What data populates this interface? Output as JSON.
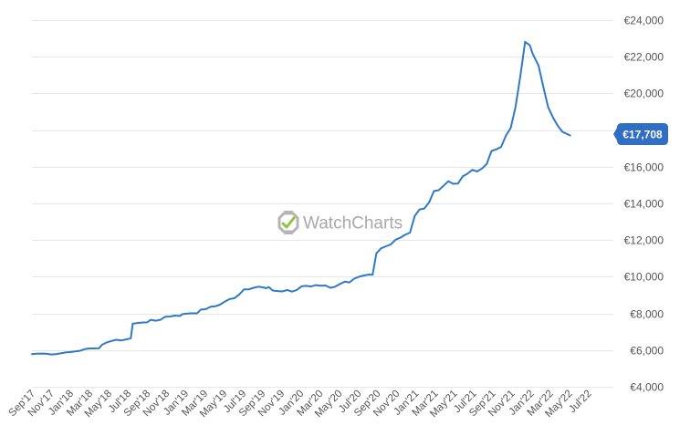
{
  "chart_data": {
    "type": "line",
    "title": "",
    "xlabel": "",
    "ylabel": "",
    "currency_prefix": "€",
    "ylim": [
      4000,
      24000
    ],
    "y_ticks": [
      4000,
      6000,
      8000,
      10000,
      12000,
      14000,
      16000,
      18000,
      20000,
      22000,
      24000
    ],
    "y_tick_labels": [
      "€4,000",
      "€6,000",
      "€8,000",
      "€10,000",
      "€12,000",
      "€14,000",
      "€16,000",
      "€18,000",
      "€20,000",
      "€22,000",
      "€24,000"
    ],
    "x_tick_labels": [
      "Sep'17",
      "Nov'17",
      "Jan'18",
      "Mar'18",
      "May'18",
      "Jul'18",
      "Sep'18",
      "Nov'18",
      "Jan'19",
      "Mar'19",
      "May'19",
      "Jul'19",
      "Sep'19",
      "Nov'19",
      "Jan'20",
      "Mar'20",
      "May'20",
      "Jul'20",
      "Sep'20",
      "Nov'20",
      "Jan'21",
      "Mar'21",
      "May'21",
      "Jul'21",
      "Sep'21",
      "Nov'21",
      "Jan'22",
      "Mar'22",
      "May'22",
      "Jul'22"
    ],
    "x_tick_months": [
      0,
      2,
      4,
      6,
      8,
      10,
      12,
      14,
      16,
      18,
      20,
      22,
      24,
      26,
      28,
      30,
      32,
      34,
      36,
      38,
      40,
      42,
      44,
      46,
      48,
      50,
      52,
      54,
      56,
      58
    ],
    "x_range_months": [
      0,
      60.6
    ],
    "grid": true,
    "legend": "none",
    "watermark": "WatchCharts",
    "current_value_label": "€17,708",
    "colors": {
      "line": "#3079c6",
      "badge": "#2f6ec4",
      "grid": "#e6e6e6",
      "tick": "#555555"
    },
    "series": [
      {
        "values": [
          [
            0,
            5780
          ],
          [
            0.5,
            5800
          ],
          [
            1.0,
            5810
          ],
          [
            1.5,
            5800
          ],
          [
            2.0,
            5760
          ],
          [
            2.5,
            5780
          ],
          [
            3.0,
            5820
          ],
          [
            3.5,
            5870
          ],
          [
            4.0,
            5890
          ],
          [
            4.5,
            5930
          ],
          [
            5.0,
            5960
          ],
          [
            5.5,
            6050
          ],
          [
            6.0,
            6090
          ],
          [
            6.5,
            6090
          ],
          [
            7.0,
            6100
          ],
          [
            7.3,
            6290
          ],
          [
            7.8,
            6420
          ],
          [
            8.3,
            6500
          ],
          [
            8.8,
            6560
          ],
          [
            9.3,
            6520
          ],
          [
            9.8,
            6580
          ],
          [
            10.3,
            6640
          ],
          [
            10.5,
            7440
          ],
          [
            11.0,
            7480
          ],
          [
            11.5,
            7500
          ],
          [
            12.0,
            7510
          ],
          [
            12.4,
            7650
          ],
          [
            12.9,
            7600
          ],
          [
            13.4,
            7650
          ],
          [
            13.9,
            7820
          ],
          [
            14.4,
            7830
          ],
          [
            14.9,
            7880
          ],
          [
            15.4,
            7860
          ],
          [
            15.7,
            7960
          ],
          [
            16.2,
            7990
          ],
          [
            16.7,
            8010
          ],
          [
            17.2,
            8000
          ],
          [
            17.6,
            8210
          ],
          [
            18.1,
            8230
          ],
          [
            18.6,
            8360
          ],
          [
            19.1,
            8390
          ],
          [
            19.6,
            8480
          ],
          [
            20.1,
            8640
          ],
          [
            20.6,
            8780
          ],
          [
            21.1,
            8830
          ],
          [
            21.6,
            9030
          ],
          [
            22.1,
            9310
          ],
          [
            22.6,
            9310
          ],
          [
            23.1,
            9400
          ],
          [
            23.6,
            9460
          ],
          [
            24.1,
            9420
          ],
          [
            24.4,
            9380
          ],
          [
            24.7,
            9440
          ],
          [
            25.1,
            9250
          ],
          [
            25.6,
            9220
          ],
          [
            26.1,
            9200
          ],
          [
            26.6,
            9280
          ],
          [
            27.1,
            9190
          ],
          [
            27.6,
            9280
          ],
          [
            28.1,
            9480
          ],
          [
            28.6,
            9500
          ],
          [
            29.1,
            9470
          ],
          [
            29.6,
            9540
          ],
          [
            30.1,
            9510
          ],
          [
            30.6,
            9520
          ],
          [
            31.1,
            9400
          ],
          [
            31.6,
            9460
          ],
          [
            32.1,
            9600
          ],
          [
            32.6,
            9730
          ],
          [
            33.1,
            9690
          ],
          [
            33.6,
            9900
          ],
          [
            34.1,
            10000
          ],
          [
            34.6,
            10070
          ],
          [
            35.1,
            10120
          ],
          [
            35.5,
            10110
          ],
          [
            35.9,
            11280
          ],
          [
            36.4,
            11550
          ],
          [
            36.9,
            11660
          ],
          [
            37.4,
            11760
          ],
          [
            37.9,
            12020
          ],
          [
            38.4,
            12130
          ],
          [
            38.9,
            12290
          ],
          [
            39.4,
            12410
          ],
          [
            39.9,
            13320
          ],
          [
            40.4,
            13670
          ],
          [
            40.9,
            13720
          ],
          [
            41.4,
            14060
          ],
          [
            41.9,
            14670
          ],
          [
            42.4,
            14720
          ],
          [
            42.9,
            14960
          ],
          [
            43.4,
            15210
          ],
          [
            43.9,
            15070
          ],
          [
            44.4,
            15080
          ],
          [
            44.9,
            15480
          ],
          [
            45.4,
            15620
          ],
          [
            45.9,
            15830
          ],
          [
            46.4,
            15740
          ],
          [
            46.9,
            15900
          ],
          [
            47.4,
            16150
          ],
          [
            47.9,
            16860
          ],
          [
            48.4,
            16950
          ],
          [
            48.9,
            17080
          ],
          [
            49.4,
            17700
          ],
          [
            49.9,
            18110
          ],
          [
            50.4,
            19260
          ],
          [
            50.9,
            20920
          ],
          [
            51.4,
            22810
          ],
          [
            51.9,
            22620
          ],
          [
            52.2,
            22150
          ],
          [
            52.8,
            21520
          ],
          [
            53.3,
            20350
          ],
          [
            53.8,
            19260
          ],
          [
            54.3,
            18690
          ],
          [
            54.8,
            18240
          ],
          [
            55.3,
            17900
          ],
          [
            55.8,
            17780
          ],
          [
            56.1,
            17708
          ]
        ]
      }
    ]
  }
}
